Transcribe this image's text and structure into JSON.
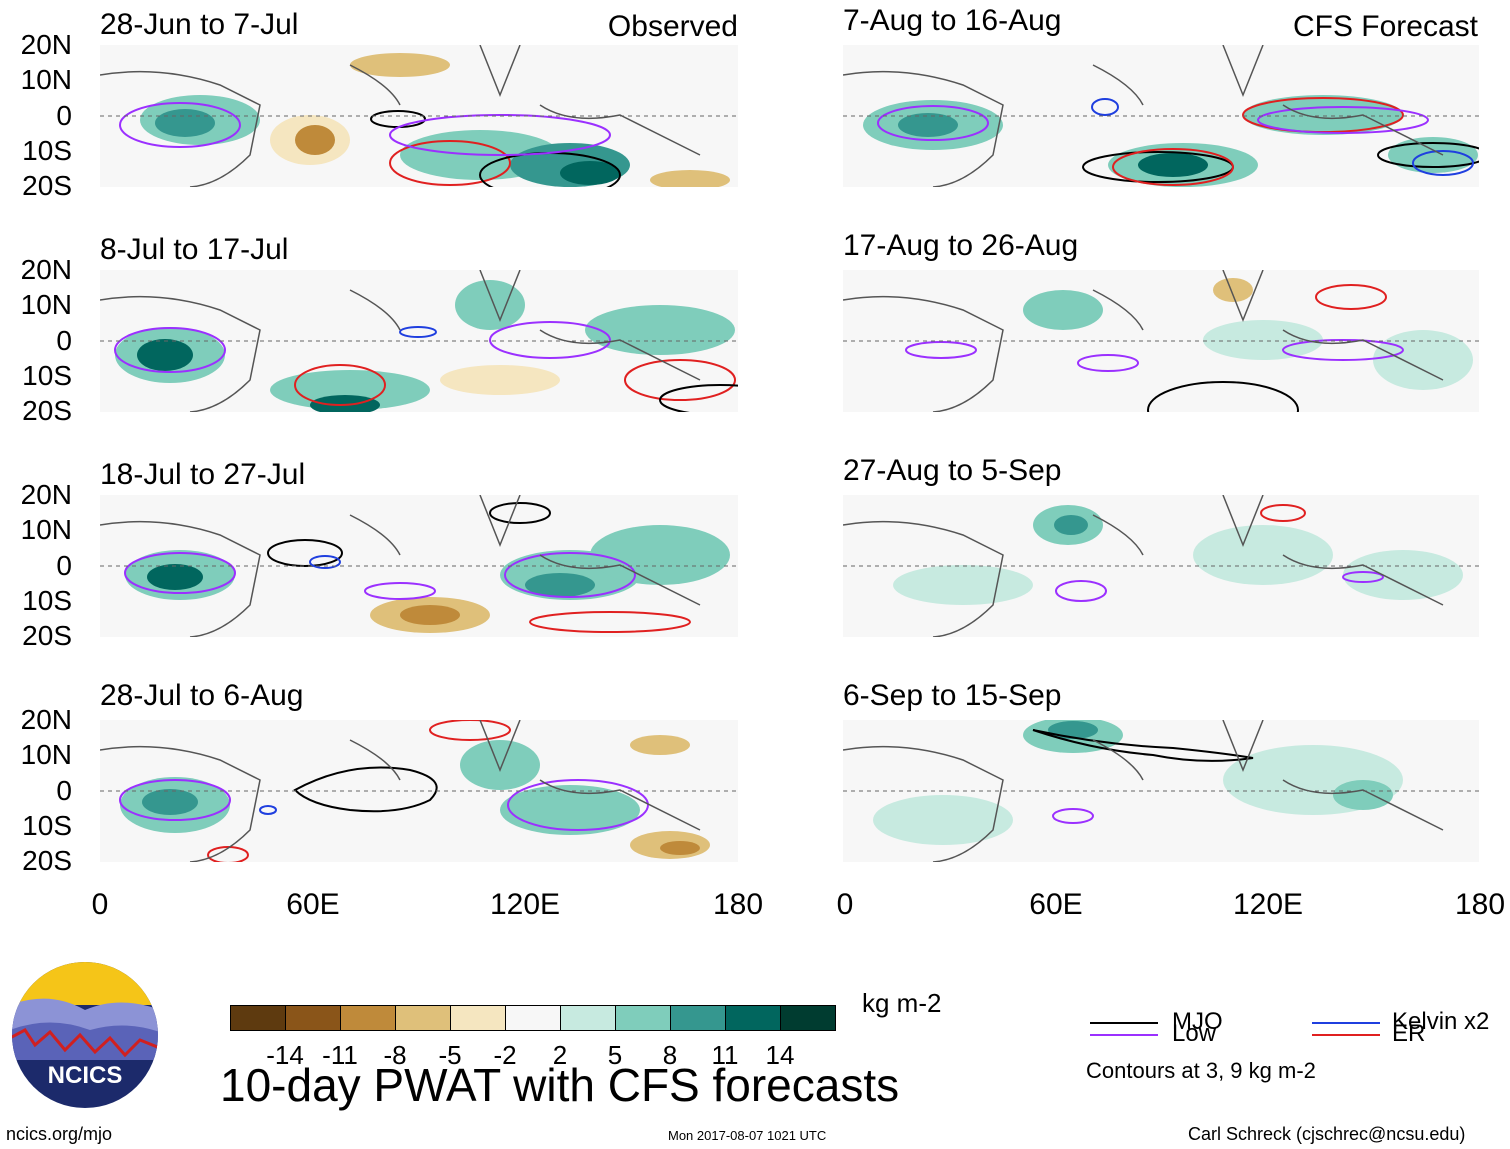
{
  "panels_left_header": "Observed",
  "panels_right_header": "CFS Forecast",
  "left_panels": [
    {
      "title": "28-Jun to 7-Jul"
    },
    {
      "title": "8-Jul to 17-Jul"
    },
    {
      "title": "18-Jul to 27-Jul"
    },
    {
      "title": "28-Jul to 6-Aug"
    }
  ],
  "right_panels": [
    {
      "title": "7-Aug to 16-Aug"
    },
    {
      "title": "17-Aug to 26-Aug"
    },
    {
      "title": "27-Aug to 5-Sep"
    },
    {
      "title": "6-Sep to 15-Sep"
    }
  ],
  "y_ticks": [
    "20N",
    "10N",
    "0",
    "10S",
    "20S"
  ],
  "x_ticks": [
    "0",
    "60E",
    "120E",
    "180"
  ],
  "colorbar": {
    "labels": [
      "-14",
      "-11",
      "-8",
      "-5",
      "-2",
      "2",
      "5",
      "8",
      "11",
      "14"
    ],
    "colors": [
      "#5e3a0f",
      "#8a5519",
      "#bf8a3a",
      "#dfc07a",
      "#f5e6c0",
      "#f7f7f7",
      "#c7eae0",
      "#7fcdbb",
      "#35978f",
      "#01665e",
      "#003c30"
    ],
    "units": "kg m-2"
  },
  "title": "10-day PWAT with CFS forecasts",
  "legend": {
    "items": [
      {
        "label": "MJO",
        "color": "#000000"
      },
      {
        "label": "Kelvin x2",
        "color": "#1f3fdf"
      },
      {
        "label": "Low",
        "color": "#9b30ff"
      },
      {
        "label": "ER",
        "color": "#e02020"
      }
    ],
    "note": "Contours at 3, 9 kg m-2"
  },
  "logo": {
    "text": "NCICS"
  },
  "footer": {
    "url": "ncics.org/mjo",
    "timestamp": "Mon 2017-08-07 1021 UTC",
    "credit": "Carl Schreck (cjschrec@ncsu.edu)"
  }
}
